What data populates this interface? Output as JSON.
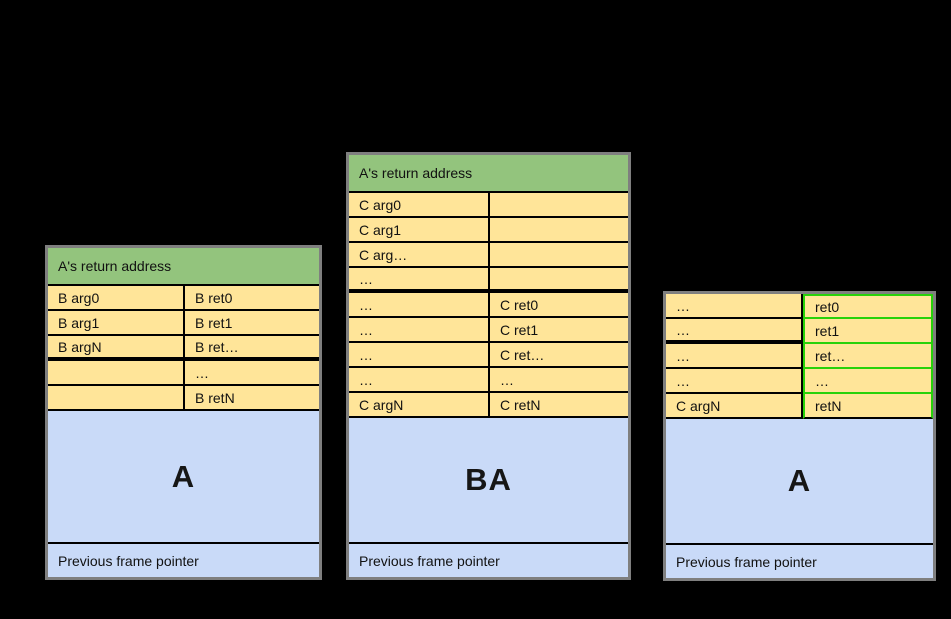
{
  "diagram": "call-stack frames",
  "colors": {
    "background": "#000000",
    "header_green": "#93c47d",
    "cell_yellow": "#ffe599",
    "frame_blue": "#c9daf8",
    "highlight_green": "#28d20a",
    "grid_black": "#000000",
    "table_outline_gray": "#7f7f7f"
  },
  "frames": [
    {
      "header": "A's return address",
      "rows": [
        {
          "left": "B arg0",
          "right": "B ret0"
        },
        {
          "left": "B arg1",
          "right": "B ret1"
        },
        {
          "left": "B argN",
          "right": "B ret…"
        },
        {
          "left": "",
          "right": "…"
        },
        {
          "left": "",
          "right": "B retN"
        }
      ],
      "frame_label": "A",
      "footer": "Previous frame pointer"
    },
    {
      "header": "A's return address",
      "rows": [
        {
          "left": "C arg0",
          "right": ""
        },
        {
          "left": "C arg1",
          "right": ""
        },
        {
          "left": "C arg…",
          "right": ""
        },
        {
          "left": "…",
          "right": ""
        },
        {
          "left": "…",
          "right": "C ret0"
        },
        {
          "left": "…",
          "right": "C ret1"
        },
        {
          "left": "…",
          "right": "C ret…"
        },
        {
          "left": "…",
          "right": "…"
        },
        {
          "left": "C argN",
          "right": "C retN"
        }
      ],
      "frame_label": "BA",
      "footer": "Previous frame pointer"
    },
    {
      "header": null,
      "rows": [
        {
          "left": "…",
          "right": "ret0",
          "highlight": true
        },
        {
          "left": "…",
          "right": "ret1",
          "highlight": true
        },
        {
          "left": "…",
          "right": "ret…",
          "highlight": true
        },
        {
          "left": "…",
          "right": "…",
          "highlight": true
        },
        {
          "left": "C argN",
          "right": "retN",
          "highlight": true
        }
      ],
      "frame_label": "A",
      "footer": "Previous frame pointer"
    }
  ]
}
